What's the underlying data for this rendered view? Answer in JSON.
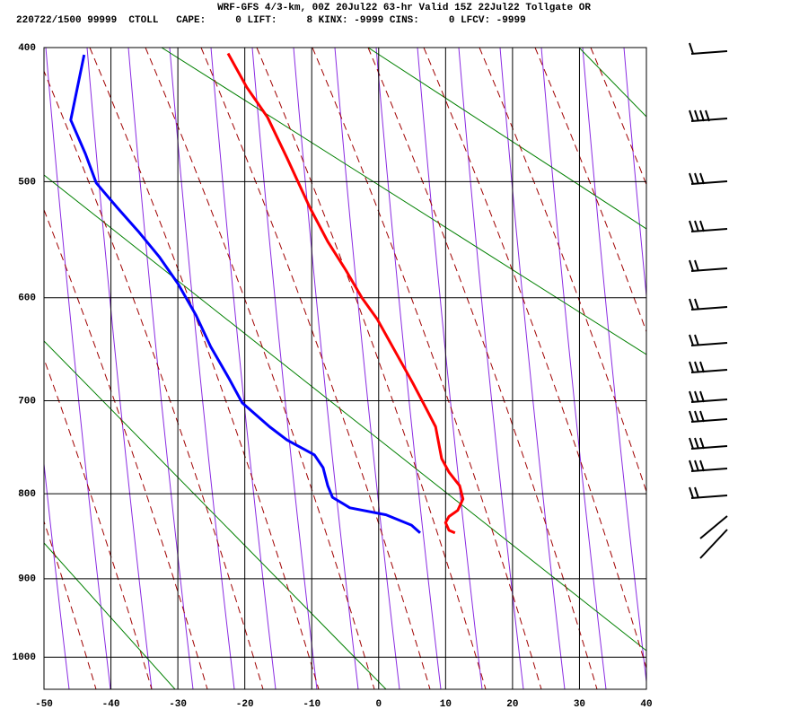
{
  "chart_data": {
    "type": "skewt",
    "title": "WRF-GFS 4/3-km, 00Z 20Jul22 63-hr Valid 15Z 22Jul22 Tollgate OR",
    "subtitle": "220722/1500 99999  CTOLL   CAPE:     0 LIFT:     8 KINX: -9999 CINS:     0 LFCV: -9999",
    "xlim": [
      -50,
      40
    ],
    "xticks": [
      -50,
      -40,
      -30,
      -20,
      -10,
      0,
      10,
      20,
      30,
      40
    ],
    "ylim": [
      400,
      1043
    ],
    "yticks": [
      400,
      500,
      600,
      700,
      800,
      900,
      1000
    ],
    "grid": true,
    "series": [
      {
        "color": "#ff0000",
        "x": [
          -22.5,
          -19.7,
          -16.6,
          -13.7,
          -10.3,
          -7.6,
          -4.9,
          -2.5,
          -0.2,
          2.4,
          5.1,
          7.1,
          8.5,
          9.4,
          10.5,
          12.1,
          12.6,
          11.8,
          10.5,
          10.0,
          10.5,
          11.4
        ],
        "values": [
          404,
          428,
          450,
          481,
          521,
          550,
          575,
          600,
          620,
          650,
          682,
          708,
          727,
          761,
          776,
          791,
          806,
          819,
          826,
          833,
          842,
          845
        ]
      },
      {
        "color": "#0000ff",
        "x": [
          -44.0,
          -46.0,
          -43.8,
          -42.2,
          -39.1,
          -35.8,
          -32.8,
          -30.0,
          -27.3,
          -25.1,
          -22.4,
          -20.4,
          -16.3,
          -13.7,
          -9.6,
          -8.3,
          -7.6,
          -6.9,
          -4.3,
          1.1,
          4.9,
          6.2
        ],
        "values": [
          405,
          452,
          478,
          501,
          521,
          542,
          563,
          587,
          616,
          646,
          677,
          702,
          727,
          741,
          757,
          771,
          791,
          804,
          816,
          824,
          836,
          845
        ]
      }
    ]
  }
}
